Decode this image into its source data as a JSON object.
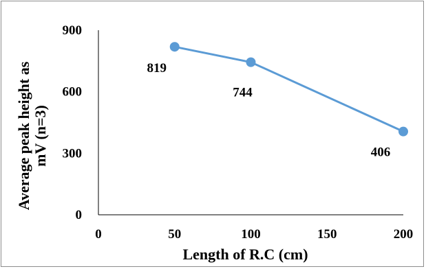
{
  "chart_data": {
    "type": "line",
    "x": [
      50,
      100,
      200
    ],
    "xlabels": [
      "50",
      "100",
      "200"
    ],
    "series": [
      {
        "values": [
          819,
          744,
          406
        ]
      }
    ],
    "data_labels": [
      "819",
      "744",
      "406"
    ],
    "x_ticks": [
      "0",
      "50",
      "100",
      "150",
      "200"
    ],
    "y_ticks": [
      "0",
      "300",
      "600",
      "900"
    ],
    "xlabel": "Length of R.C (cm)",
    "ylabel_line1": "Average  peak height as",
    "ylabel_line2": "mV (n=3)",
    "ylim": [
      0,
      900
    ],
    "grid": false,
    "colors": {
      "series": "#5b9bd5",
      "axis": "#000000",
      "border": "#8c8c8c"
    }
  }
}
